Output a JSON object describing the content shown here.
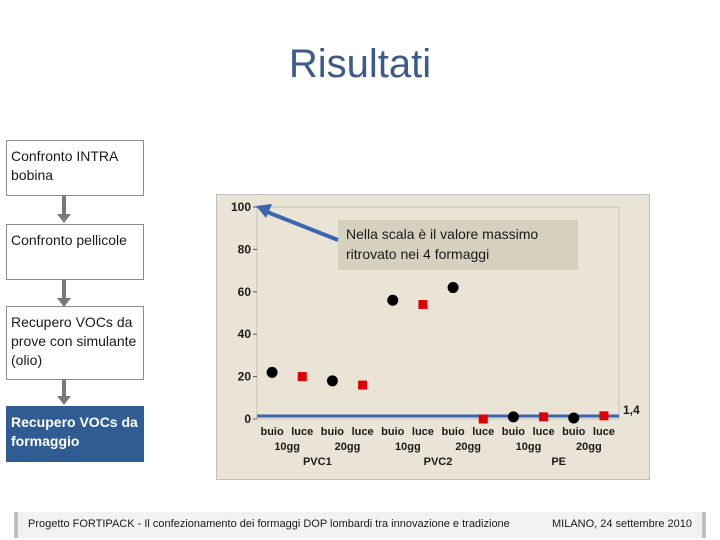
{
  "slide": {
    "title": "Risultati",
    "steps": [
      {
        "label": "Confronto INTRA bobina",
        "active": false
      },
      {
        "label": "Confronto pellicole",
        "active": false
      },
      {
        "label": "Recupero VOCs da prove con simulante (olio)",
        "active": false
      },
      {
        "label": "Recupero VOCs da formaggio",
        "active": true
      }
    ],
    "callout": "Nella scala è il valore massimo ritrovato nei 4 formaggi",
    "footer_left": "Progetto FORTIPACK - Il confezionamento dei formaggi DOP lombardi tra innovazione e tradizione",
    "footer_right": "MILANO, 24 settembre 2010"
  },
  "colors": {
    "title": "#3c5a8c",
    "active_step": "#2f5d93",
    "chart_bg": "#e9e4d6",
    "buio": "#000000",
    "luce": "#e00000",
    "reference_line": "#3a66b0"
  },
  "chart_data": {
    "type": "scatter",
    "ylim": [
      0,
      100
    ],
    "yticks": [
      0,
      20,
      40,
      60,
      80,
      100
    ],
    "reference_line": {
      "value": 1.4,
      "label": "1,4"
    },
    "categories": [
      {
        "label": "buio",
        "time": "10gg",
        "group": "PVC1",
        "value": 22,
        "marker": "circle"
      },
      {
        "label": "luce",
        "time": "10gg",
        "group": "PVC1",
        "value": 20,
        "marker": "square"
      },
      {
        "label": "buio",
        "time": "20gg",
        "group": "PVC1",
        "value": 18,
        "marker": "circle"
      },
      {
        "label": "luce",
        "time": "20gg",
        "group": "PVC1",
        "value": 16,
        "marker": "square"
      },
      {
        "label": "buio",
        "time": "10gg",
        "group": "PVC2",
        "value": 56,
        "marker": "circle"
      },
      {
        "label": "luce",
        "time": "10gg",
        "group": "PVC2",
        "value": 54,
        "marker": "square"
      },
      {
        "label": "buio",
        "time": "20gg",
        "group": "PVC2",
        "value": 62,
        "marker": "circle"
      },
      {
        "label": "luce",
        "time": "20gg",
        "group": "PVC2",
        "value": 0,
        "marker": "square"
      },
      {
        "label": "buio",
        "time": "10gg",
        "group": "PE",
        "value": 1,
        "marker": "circle"
      },
      {
        "label": "luce",
        "time": "10gg",
        "group": "PE",
        "value": 1,
        "marker": "square"
      },
      {
        "label": "buio",
        "time": "20gg",
        "group": "PE",
        "value": 0.5,
        "marker": "circle"
      },
      {
        "label": "luce",
        "time": "20gg",
        "group": "PE",
        "value": 1.5,
        "marker": "square"
      }
    ],
    "groups": [
      "PVC1",
      "PVC2",
      "PE"
    ]
  }
}
